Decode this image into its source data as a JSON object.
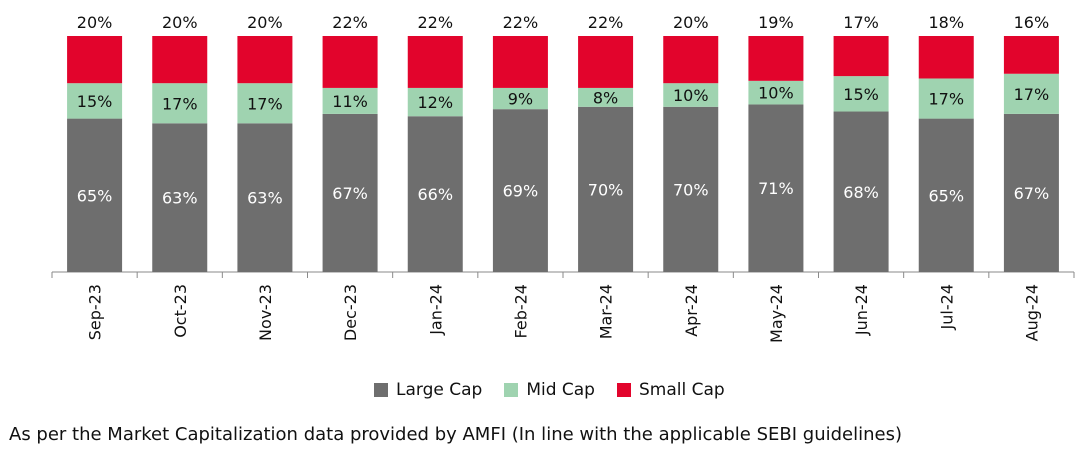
{
  "chart_data": {
    "type": "bar",
    "stacked": true,
    "categories": [
      "Sep-23",
      "Oct-23",
      "Nov-23",
      "Dec-23",
      "Jan-24",
      "Feb-24",
      "Mar-24",
      "Apr-24",
      "May-24",
      "Jun-24",
      "Jul-24",
      "Aug-24"
    ],
    "series": [
      {
        "name": "Large Cap",
        "color": "#6e6e6e",
        "values": [
          65,
          63,
          63,
          67,
          66,
          69,
          70,
          70,
          71,
          68,
          65,
          67
        ]
      },
      {
        "name": "Mid Cap",
        "color": "#9fd3b0",
        "values": [
          15,
          17,
          17,
          11,
          12,
          9,
          8,
          10,
          10,
          15,
          17,
          17
        ]
      },
      {
        "name": "Small Cap",
        "color": "#e2042c",
        "values": [
          20,
          20,
          20,
          22,
          22,
          22,
          22,
          20,
          19,
          17,
          18,
          16
        ]
      }
    ],
    "value_format": "percent",
    "ylim": [
      0,
      100
    ],
    "legend_position": "bottom",
    "grid": false
  },
  "footnote": "As per the Market Capitalization data provided by AMFI (In line with the applicable SEBI guidelines)"
}
